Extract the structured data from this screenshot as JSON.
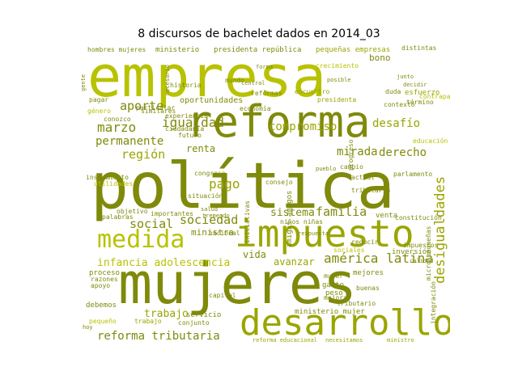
{
  "title": "8 discursos de bachelet dados en 2014_03",
  "palette": {
    "dark": "#7f8a0a",
    "mid": "#9aa500",
    "light": "#b8c200",
    "bright": "#c8d000"
  },
  "words": [
    "empresa",
    "reforma",
    "política",
    "mujeres",
    "impuesto",
    "desarrollo",
    "medida",
    "desigualdades",
    "igualdad",
    "marzo",
    "permanente",
    "región",
    "social",
    "sociedad",
    "sistema",
    "familia",
    "américa latina",
    "infancia adolescencia",
    "trabajo",
    "reforma tributaria",
    "aporte",
    "desafío",
    "compromiso",
    "derecho",
    "mirada",
    "pago",
    "renta",
    "avanzar",
    "vida",
    "ministra",
    "bono",
    "ministerio",
    "presidenta república",
    "pequeñas empresas",
    "oportunidades",
    "reforma educacional",
    "necesitamos",
    "ministro",
    "ministerio mujer",
    "servicio",
    "gasto",
    "inversión",
    "educación",
    "género",
    "ciudadanía",
    "sociales",
    "contraparte",
    "tributario",
    "niños niñas",
    "amigas amigos",
    "parlamento",
    "venta",
    "constitución",
    "iniciativas",
    "consejo",
    "congreso",
    "futuro",
    "presidenta",
    "esfuerzo",
    "cambio",
    "término",
    "economía",
    "importantes",
    "situación",
    "utilidades",
    "instrumento",
    "proceso",
    "apoyo",
    "debemos",
    "peso",
    "nacional",
    "capital",
    "conjunto",
    "pequeño",
    "mejores",
    "trabajo",
    "mundo",
    "hombres mujeres",
    "distintas",
    "progreso",
    "encuentro",
    "reformas",
    "crecimiento",
    "contexto",
    "objetivo",
    "gente",
    "micro pequeñas",
    "integración",
    "reducir",
    "impuestos",
    "actual",
    "tributaria",
    "mujer",
    "mejora",
    "buenas",
    "palabras",
    "razones",
    "particular",
    "conozco",
    "similares",
    "salud",
    "tremendo",
    "historia",
    "experiencia",
    "central",
    "duda",
    "decidir",
    "junto",
    "hoy",
    "pagar",
    "necesario",
    "forma",
    "respuesta",
    "posible",
    "pueblo",
    "calidad"
  ]
}
